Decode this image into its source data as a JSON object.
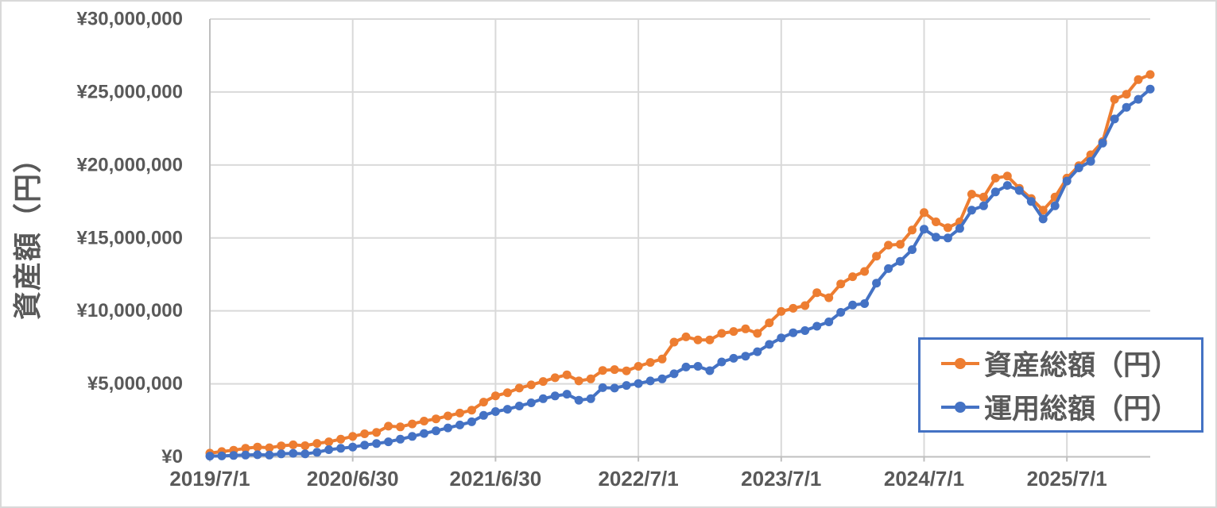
{
  "chart_data": {
    "type": "line",
    "title": "",
    "xlabel": "",
    "ylabel": "資産額（円）",
    "ylim": [
      0,
      30000000
    ],
    "grid": true,
    "legend_position": "bottom-right",
    "x_start_month": "2019-07",
    "x_interval": "monthly",
    "n_points": 80,
    "y_ticks": [
      {
        "value": 0,
        "label": "¥0"
      },
      {
        "value": 5000000,
        "label": "¥5,000,000"
      },
      {
        "value": 10000000,
        "label": "¥10,000,000"
      },
      {
        "value": 15000000,
        "label": "¥15,000,000"
      },
      {
        "value": 20000000,
        "label": "¥20,000,000"
      },
      {
        "value": 25000000,
        "label": "¥25,000,000"
      },
      {
        "value": 30000000,
        "label": "¥30,000,000"
      }
    ],
    "x_ticks": [
      {
        "label": "2019/7/1",
        "month_index": 0
      },
      {
        "label": "2020/6/30",
        "month_index": 12
      },
      {
        "label": "2021/6/30",
        "month_index": 24
      },
      {
        "label": "2022/7/1",
        "month_index": 36
      },
      {
        "label": "2023/7/1",
        "month_index": 48
      },
      {
        "label": "2024/7/1",
        "month_index": 60
      },
      {
        "label": "2025/7/1",
        "month_index": 72
      }
    ],
    "series": [
      {
        "name": "資産総額（円）",
        "color": "#ED7D31",
        "values": [
          250000,
          360000,
          450000,
          580000,
          670000,
          620000,
          750000,
          820000,
          760000,
          920000,
          1030000,
          1210000,
          1400000,
          1580000,
          1670000,
          2100000,
          2050000,
          2250000,
          2450000,
          2600000,
          2800000,
          3000000,
          3200000,
          3750000,
          4180000,
          4390000,
          4710000,
          4930000,
          5160000,
          5420000,
          5620000,
          5200000,
          5340000,
          5920000,
          5980000,
          5890000,
          6200000,
          6470000,
          6700000,
          7860000,
          8220000,
          8010000,
          8010000,
          8460000,
          8590000,
          8770000,
          8460000,
          9180000,
          9960000,
          10180000,
          10360000,
          11250000,
          10900000,
          11850000,
          12340000,
          12700000,
          13750000,
          14500000,
          14560000,
          15540000,
          16740000,
          16100000,
          15700000,
          16100000,
          18000000,
          17800000,
          19100000,
          19240000,
          18400000,
          17700000,
          16900000,
          17800000,
          19100000,
          19950000,
          20700000,
          21600000,
          24500000,
          24850000,
          25850000,
          26200000
        ]
      },
      {
        "name": "運用総額（円）",
        "color": "#4472C4",
        "values": [
          50000,
          60000,
          90000,
          120000,
          140000,
          120000,
          200000,
          240000,
          200000,
          310000,
          490000,
          580000,
          670000,
          800000,
          910000,
          1030000,
          1210000,
          1400000,
          1600000,
          1780000,
          1980000,
          2180000,
          2400000,
          2840000,
          3100000,
          3260000,
          3480000,
          3700000,
          3980000,
          4170000,
          4290000,
          3880000,
          3980000,
          4740000,
          4710000,
          4890000,
          5020000,
          5200000,
          5340000,
          5690000,
          6150000,
          6200000,
          5900000,
          6500000,
          6750000,
          6900000,
          7200000,
          7700000,
          8150000,
          8500000,
          8650000,
          8950000,
          9250000,
          9900000,
          10400000,
          10500000,
          11900000,
          12900000,
          13400000,
          14200000,
          15600000,
          15050000,
          15000000,
          15650000,
          16900000,
          17200000,
          18150000,
          18600000,
          18250000,
          17500000,
          16300000,
          17200000,
          18900000,
          19800000,
          20250000,
          21500000,
          23150000,
          23950000,
          24500000,
          25200000
        ]
      }
    ]
  },
  "colors": {
    "grid": "#d9d9d9",
    "axis": "#bfbfbf",
    "text": "#595959",
    "frame_border": "#d9d9d9",
    "legend_border": "#4472C4",
    "background": "#ffffff"
  }
}
